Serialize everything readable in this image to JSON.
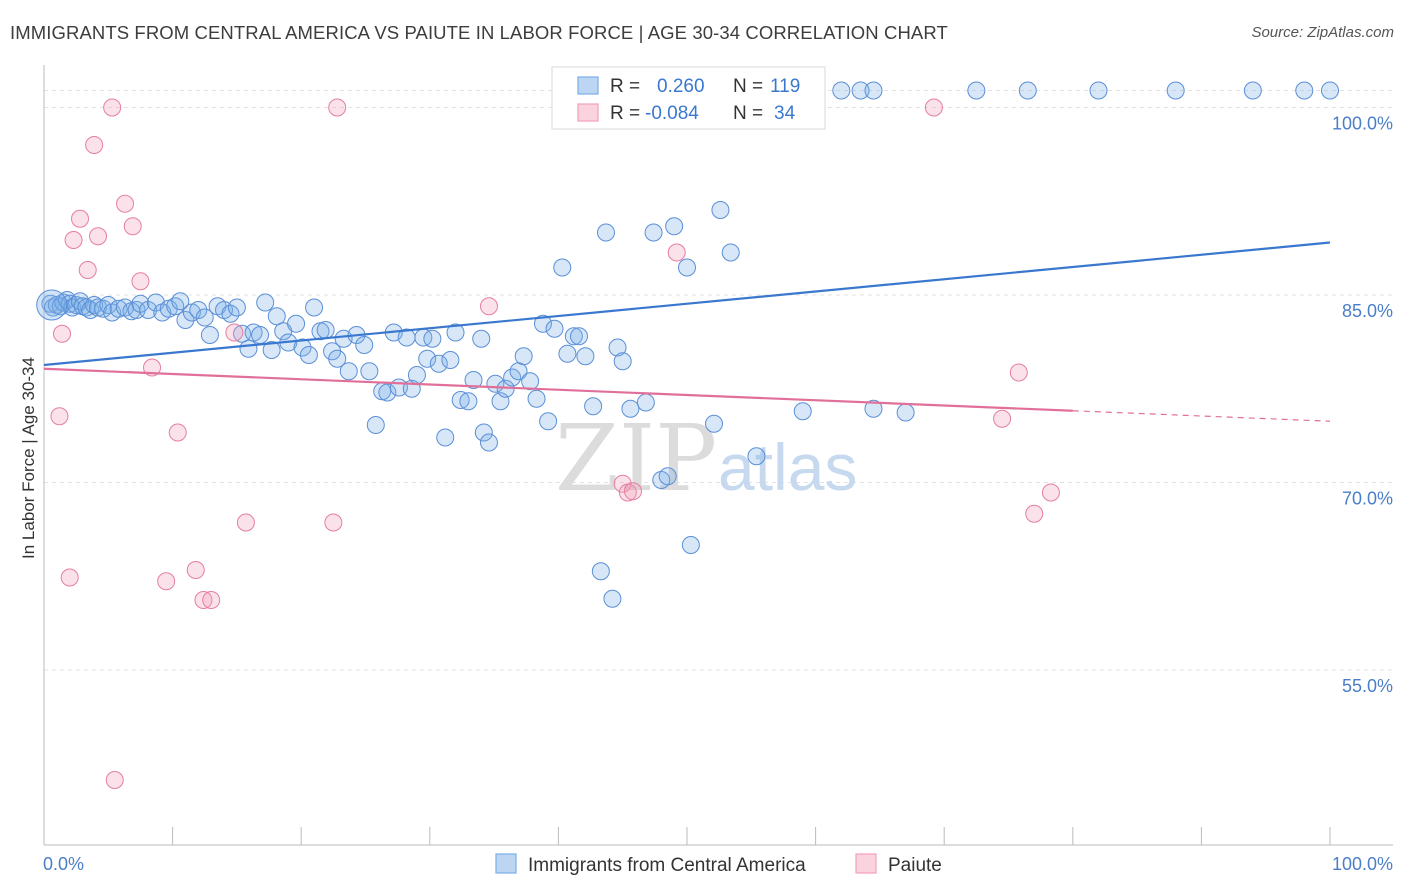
{
  "header": {
    "title": "IMMIGRANTS FROM CENTRAL AMERICA VS PAIUTE IN LABOR FORCE | AGE 30-34 CORRELATION CHART",
    "source": "Source: ZipAtlas.com"
  },
  "watermark": {
    "zip": "ZIP",
    "atlas": "atlas"
  },
  "stats_legend": {
    "rows": [
      {
        "r_label": "R =",
        "r_value": "0.260",
        "n_label": "N =",
        "n_value": "119",
        "color": "#7aaee8"
      },
      {
        "r_label": "R =",
        "r_value": "-0.084",
        "n_label": "N =",
        "n_value": "34",
        "color": "#f2a0b8"
      }
    ]
  },
  "chart_data": {
    "type": "scatter",
    "ylabel": "In Labor Force | Age 30-34",
    "xlabel": "",
    "xlim": [
      0,
      100
    ],
    "ylim": [
      41.0,
      103.0
    ],
    "x_tick_labels": [
      "0.0%",
      "100.0%"
    ],
    "y_ticks": [
      {
        "value": 55.0,
        "label": "55.0%"
      },
      {
        "value": 70.0,
        "label": "70.0%"
      },
      {
        "value": 85.0,
        "label": "85.0%"
      },
      {
        "value": 100.0,
        "label": "100.0%"
      }
    ],
    "grid": true,
    "legend_position": "bottom",
    "series": [
      {
        "name": "Immigrants from Central America",
        "color": "#7aaee8",
        "stroke": "#5b8fd6",
        "trend": {
          "x": [
            0,
            100
          ],
          "y": [
            79.4,
            89.2
          ],
          "dashed_from": null
        },
        "points": [
          [
            0.5,
            84.3
          ],
          [
            0.7,
            84.0
          ],
          [
            1.0,
            84.2
          ],
          [
            1.3,
            84.1
          ],
          [
            1.5,
            84.4
          ],
          [
            1.8,
            84.6
          ],
          [
            2.0,
            84.3
          ],
          [
            2.2,
            84.0
          ],
          [
            2.5,
            84.2
          ],
          [
            2.8,
            84.5
          ],
          [
            3.0,
            84.1
          ],
          [
            3.3,
            84.0
          ],
          [
            3.6,
            83.8
          ],
          [
            3.9,
            84.2
          ],
          [
            4.2,
            84.0
          ],
          [
            4.6,
            83.9
          ],
          [
            5.0,
            84.2
          ],
          [
            5.3,
            83.6
          ],
          [
            5.8,
            83.9
          ],
          [
            6.3,
            84.0
          ],
          [
            6.8,
            83.7
          ],
          [
            7.2,
            83.8
          ],
          [
            7.5,
            84.3
          ],
          [
            8.1,
            83.8
          ],
          [
            8.7,
            84.4
          ],
          [
            9.2,
            83.6
          ],
          [
            9.7,
            83.9
          ],
          [
            10.2,
            84.1
          ],
          [
            10.6,
            84.5
          ],
          [
            11.0,
            83.0
          ],
          [
            11.5,
            83.6
          ],
          [
            12.0,
            83.8
          ],
          [
            12.5,
            83.2
          ],
          [
            12.9,
            81.8
          ],
          [
            13.5,
            84.1
          ],
          [
            14.0,
            83.8
          ],
          [
            14.5,
            83.5
          ],
          [
            15.0,
            84.0
          ],
          [
            15.4,
            81.9
          ],
          [
            15.9,
            80.7
          ],
          [
            16.3,
            82.0
          ],
          [
            16.8,
            81.8
          ],
          [
            17.2,
            84.4
          ],
          [
            17.7,
            80.6
          ],
          [
            18.1,
            83.3
          ],
          [
            18.6,
            82.1
          ],
          [
            19.0,
            81.2
          ],
          [
            19.6,
            82.7
          ],
          [
            20.1,
            80.8
          ],
          [
            20.6,
            80.2
          ],
          [
            21.0,
            84.0
          ],
          [
            21.5,
            82.1
          ],
          [
            21.9,
            82.2
          ],
          [
            22.4,
            80.5
          ],
          [
            22.8,
            79.9
          ],
          [
            23.3,
            81.5
          ],
          [
            23.7,
            78.9
          ],
          [
            24.3,
            81.8
          ],
          [
            24.9,
            81.0
          ],
          [
            25.3,
            78.9
          ],
          [
            25.8,
            74.6
          ],
          [
            26.3,
            77.3
          ],
          [
            26.7,
            77.2
          ],
          [
            27.2,
            82.0
          ],
          [
            27.6,
            77.6
          ],
          [
            28.2,
            81.6
          ],
          [
            28.6,
            77.5
          ],
          [
            29.0,
            78.6
          ],
          [
            29.5,
            81.6
          ],
          [
            29.8,
            79.9
          ],
          [
            30.2,
            81.5
          ],
          [
            30.7,
            79.5
          ],
          [
            31.2,
            73.6
          ],
          [
            31.6,
            79.8
          ],
          [
            32.0,
            82.0
          ],
          [
            32.4,
            76.6
          ],
          [
            33.0,
            76.5
          ],
          [
            33.4,
            78.2
          ],
          [
            34.0,
            81.5
          ],
          [
            34.2,
            74.0
          ],
          [
            34.6,
            73.2
          ],
          [
            35.1,
            77.9
          ],
          [
            35.5,
            76.5
          ],
          [
            35.9,
            77.5
          ],
          [
            36.4,
            78.4
          ],
          [
            36.9,
            78.9
          ],
          [
            37.3,
            80.1
          ],
          [
            37.8,
            78.1
          ],
          [
            38.3,
            76.7
          ],
          [
            38.8,
            82.7
          ],
          [
            39.2,
            74.9
          ],
          [
            39.7,
            82.3
          ],
          [
            40.3,
            87.2
          ],
          [
            40.7,
            80.3
          ],
          [
            41.2,
            81.7
          ],
          [
            41.6,
            81.7
          ],
          [
            42.1,
            80.1
          ],
          [
            42.7,
            76.1
          ],
          [
            43.3,
            62.9
          ],
          [
            43.7,
            90.0
          ],
          [
            44.2,
            60.7
          ],
          [
            44.6,
            80.8
          ],
          [
            45.0,
            79.7
          ],
          [
            45.6,
            75.9
          ],
          [
            46.8,
            76.4
          ],
          [
            47.4,
            90.0
          ],
          [
            48.0,
            70.2
          ],
          [
            48.5,
            70.5
          ],
          [
            49.0,
            90.5
          ],
          [
            50.0,
            87.2
          ],
          [
            50.3,
            65.0
          ],
          [
            52.1,
            74.7
          ],
          [
            52.6,
            91.8
          ],
          [
            53.4,
            88.4
          ],
          [
            55.4,
            72.1
          ],
          [
            59.0,
            75.7
          ],
          [
            64.5,
            75.9
          ],
          [
            67.0,
            75.6
          ]
        ],
        "top_points_x": [
          41.0,
          47.0,
          48.5,
          53.0,
          58.0,
          62.0,
          63.5,
          64.5,
          72.5,
          76.5,
          98.0,
          100.0,
          94.0,
          88.0,
          82.0
        ]
      },
      {
        "name": "Paiute",
        "color": "#f2a0b8",
        "stroke": "#e57fa0",
        "trend": {
          "x": [
            0,
            100
          ],
          "y": [
            79.1,
            74.9
          ],
          "dashed_from": 80
        },
        "points": [
          [
            1.2,
            75.3
          ],
          [
            1.4,
            81.9
          ],
          [
            2.0,
            62.4
          ],
          [
            2.3,
            89.4
          ],
          [
            2.8,
            91.1
          ],
          [
            3.4,
            87.0
          ],
          [
            3.9,
            97.0
          ],
          [
            4.2,
            89.7
          ],
          [
            5.3,
            100.0
          ],
          [
            5.5,
            46.2
          ],
          [
            6.3,
            92.3
          ],
          [
            6.9,
            90.5
          ],
          [
            7.5,
            86.1
          ],
          [
            8.4,
            79.2
          ],
          [
            9.5,
            62.1
          ],
          [
            10.4,
            74.0
          ],
          [
            11.8,
            63.0
          ],
          [
            12.4,
            60.6
          ],
          [
            13.0,
            60.6
          ],
          [
            14.8,
            82.0
          ],
          [
            15.7,
            66.8
          ],
          [
            22.5,
            66.8
          ],
          [
            22.8,
            100.0
          ],
          [
            34.6,
            84.1
          ],
          [
            45.0,
            69.9
          ],
          [
            45.4,
            69.2
          ],
          [
            45.8,
            69.3
          ],
          [
            49.2,
            88.4
          ],
          [
            69.2,
            100.0
          ],
          [
            74.5,
            75.1
          ],
          [
            75.8,
            78.8
          ],
          [
            77.0,
            67.5
          ],
          [
            78.3,
            69.2
          ]
        ]
      }
    ]
  },
  "bottom_legend": {
    "items": [
      {
        "label": "Immigrants from Central America",
        "color": "#7aaee8"
      },
      {
        "label": "Paiute",
        "color": "#f2a0b8"
      }
    ]
  }
}
